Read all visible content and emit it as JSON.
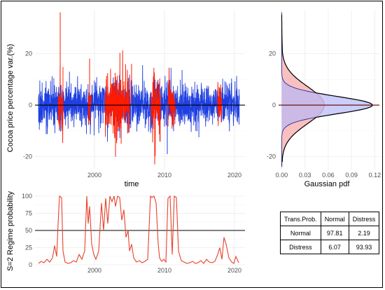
{
  "chart_data": [
    {
      "id": "returns",
      "type": "line",
      "title": "",
      "xlabel": "time",
      "ylabel": "Cocoa price percentage var.(%)",
      "xlim": [
        1991.5,
        2021.5
      ],
      "ylim": [
        -25,
        37
      ],
      "x_ticks": [
        2000,
        2010,
        2020
      ],
      "x_tick_labels": [
        "2000",
        "2010",
        "2020"
      ],
      "y_ticks": [
        -20,
        0,
        20
      ],
      "y_tick_labels": [
        "-20",
        "0",
        "20"
      ],
      "grid": true,
      "series": [
        {
          "regime": "normal",
          "color": "#1f3fe0",
          "seed": 7,
          "std": 4.2,
          "range": [
            1992.0,
            2020.7
          ]
        },
        {
          "regime": "distress",
          "color": "#ff1a00",
          "seed": 11,
          "std": 6.5,
          "range": [
            1994.8,
            1995.5
          ]
        },
        {
          "regime": "distress",
          "color": "#ff1a00",
          "seed": 12,
          "std": 5.0,
          "range": [
            1999.1,
            1999.5
          ]
        },
        {
          "regime": "distress",
          "color": "#ff1a00",
          "seed": 13,
          "std": 6.0,
          "range": [
            2001.5,
            2005.0
          ]
        },
        {
          "regime": "distress",
          "color": "#ff1a00",
          "seed": 14,
          "std": 7.0,
          "range": [
            2008.1,
            2009.4
          ]
        },
        {
          "regime": "distress",
          "color": "#ff1a00",
          "seed": 15,
          "std": 5.0,
          "range": [
            2010.5,
            2011.5
          ]
        },
        {
          "regime": "distress",
          "color": "#ff1a00",
          "seed": 16,
          "std": 5.0,
          "range": [
            2017.6,
            2018.2
          ]
        }
      ],
      "spikes": [
        {
          "x": 1995.1,
          "y": 36,
          "color": "#ff1a00"
        },
        {
          "x": 1995.3,
          "y": -10,
          "color": "#ff1a00"
        },
        {
          "x": 2003.0,
          "y": -20,
          "color": "#ff1a00"
        },
        {
          "x": 2008.6,
          "y": -23,
          "color": "#ff1a00"
        },
        {
          "x": 2010.4,
          "y": -19,
          "color": "#1f3fe0"
        },
        {
          "x": 1999.3,
          "y": 18,
          "color": "#ff1a00"
        },
        {
          "x": 2005.3,
          "y": 16,
          "color": "#ff1a00"
        }
      ],
      "hline": 0
    },
    {
      "id": "density",
      "type": "area",
      "xlabel": "Gaussian pdf",
      "xlim": [
        -0.004,
        0.126
      ],
      "ylim": [
        -25,
        37
      ],
      "x_ticks": [
        0.0,
        0.03,
        0.06,
        0.09,
        0.12
      ],
      "x_tick_labels": [
        "0.00",
        "0.03",
        "0.06",
        "0.09",
        "0.12"
      ],
      "y_ticks": [
        -20,
        0,
        20
      ],
      "y_tick_labels": [
        "-20",
        "0",
        "20"
      ],
      "grid": true,
      "series": [
        {
          "name": "",
          "mu": 0,
          "sigma": 3.4,
          "scale": 0.117,
          "fill": "#b6b8f5",
          "stroke": "#1a1a9a"
        },
        {
          "name": "",
          "mu": 0,
          "sigma": 7.2,
          "scale": 0.055,
          "fill": "#f7a5a5",
          "stroke": "#cc2a2a"
        }
      ],
      "envelope": {
        "sigma": 12,
        "max": 0.004,
        "range": [
          -22,
          35
        ]
      },
      "hline": 0
    },
    {
      "id": "regime_prob",
      "type": "line",
      "ylabel": "S=2 Regime probability",
      "xlim": [
        1991.5,
        2021.5
      ],
      "ylim": [
        0,
        100
      ],
      "x_ticks": [
        2000,
        2010,
        2020
      ],
      "x_tick_labels": [
        "2000",
        "2010",
        "2020"
      ],
      "y_ticks": [
        0,
        25,
        50,
        75,
        100
      ],
      "y_tick_labels": [
        "0",
        "25",
        "50",
        "75",
        "100"
      ],
      "grid": true,
      "hline": 50,
      "color": "#e8412c",
      "x": [
        1992.0,
        1992.4,
        1992.8,
        1993.2,
        1993.6,
        1994.0,
        1994.3,
        1994.6,
        1994.8,
        1995.0,
        1995.3,
        1995.5,
        1995.8,
        1996.2,
        1996.6,
        1997.0,
        1997.4,
        1997.8,
        1998.2,
        1998.6,
        1998.9,
        1999.1,
        1999.3,
        1999.6,
        1999.9,
        2000.2,
        2000.6,
        2001.0,
        2001.3,
        2001.6,
        2001.9,
        2002.2,
        2002.5,
        2002.8,
        2003.0,
        2003.3,
        2003.6,
        2003.9,
        2004.2,
        2004.5,
        2004.8,
        2005.0,
        2005.3,
        2005.6,
        2006.0,
        2006.4,
        2006.8,
        2007.2,
        2007.6,
        2008.0,
        2008.2,
        2008.5,
        2008.8,
        2009.1,
        2009.3,
        2009.6,
        2009.9,
        2010.2,
        2010.5,
        2010.8,
        2011.1,
        2011.4,
        2011.7,
        2012.0,
        2012.4,
        2012.8,
        2013.2,
        2013.6,
        2014.0,
        2014.4,
        2014.8,
        2015.2,
        2015.6,
        2016.0,
        2016.4,
        2016.8,
        2017.2,
        2017.6,
        2017.9,
        2018.2,
        2018.5,
        2018.8,
        2019.2,
        2019.6,
        2019.9,
        2020.2,
        2020.6
      ],
      "values": [
        2,
        5,
        3,
        8,
        4,
        10,
        28,
        12,
        60,
        100,
        98,
        20,
        4,
        2,
        3,
        6,
        4,
        15,
        8,
        20,
        100,
        60,
        85,
        30,
        15,
        8,
        20,
        90,
        50,
        97,
        60,
        100,
        92,
        100,
        85,
        100,
        98,
        65,
        80,
        40,
        50,
        20,
        30,
        10,
        4,
        6,
        3,
        5,
        8,
        100,
        98,
        100,
        90,
        30,
        10,
        5,
        8,
        4,
        97,
        100,
        15,
        100,
        98,
        20,
        6,
        4,
        2,
        3,
        5,
        2,
        3,
        6,
        2,
        8,
        4,
        3,
        5,
        15,
        25,
        8,
        40,
        30,
        10,
        4,
        2,
        12,
        3
      ]
    }
  ],
  "transition_table": {
    "header": [
      "Trans.Prob.",
      "Normal",
      "Distress"
    ],
    "rows": [
      [
        "Normal",
        "97.81",
        "2.19"
      ],
      [
        "Distress",
        "6.07",
        "93.93"
      ]
    ]
  }
}
